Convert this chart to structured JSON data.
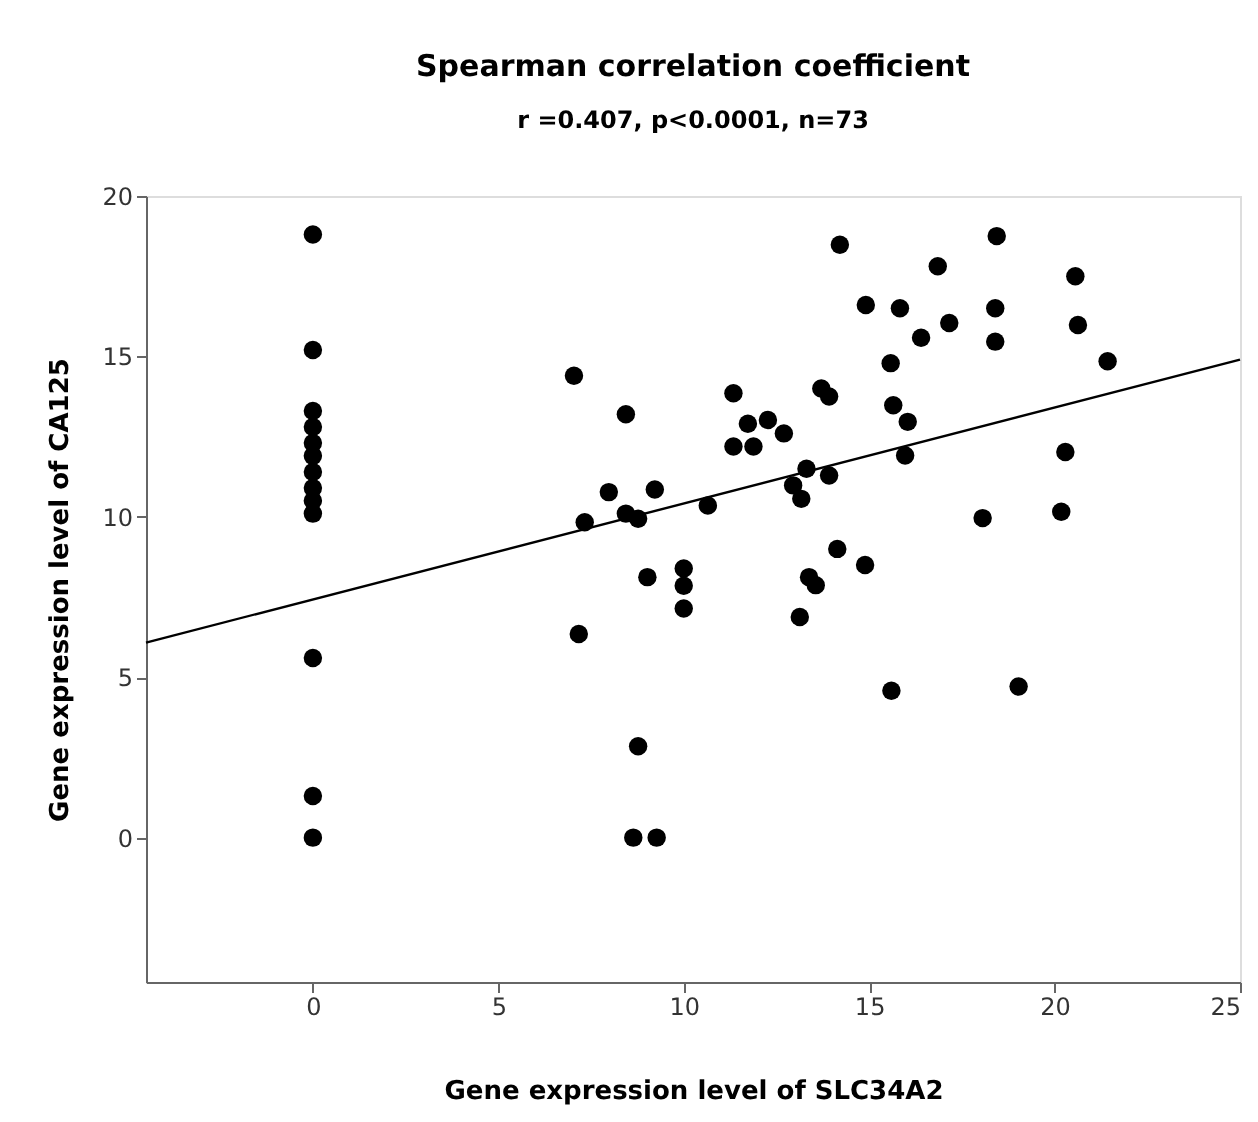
{
  "chart_data": {
    "type": "scatter",
    "title": "Spearman correlation coefficient",
    "subtitle": "r =0.407,  p<0.0001, n=73",
    "xlabel": "Gene expression level of SLC34A2",
    "ylabel": "Gene expression level of CA125",
    "xlim": [
      -4.5,
      25
    ],
    "ylim": [
      -4.5,
      20
    ],
    "xticks": [
      0,
      5,
      10,
      15,
      20,
      25
    ],
    "yticks": [
      0,
      5,
      10,
      15,
      20
    ],
    "grid": false,
    "marker": "circle",
    "series": [
      {
        "color": "#000000",
        "x": [
          0,
          0,
          0,
          0,
          0,
          0,
          0,
          0,
          0,
          0,
          0,
          0,
          0,
          7.04,
          7.17,
          7.33,
          7.98,
          8.44,
          8.44,
          8.77,
          8.77,
          8.64,
          9.02,
          9.22,
          9.27,
          10,
          10,
          10,
          10.65,
          11.34,
          11.34,
          11.88,
          11.73,
          12.27,
          12.7,
          14.21,
          12.95,
          13.17,
          13.31,
          13.92,
          13.71,
          13.92,
          13.13,
          13.38,
          13.56,
          14.14,
          14.89,
          14.91,
          15.83,
          15.58,
          15.65,
          16.04,
          15.97,
          15.6,
          16.4,
          16.85,
          17.16,
          18.44,
          18.4,
          18.4,
          18.06,
          19.03,
          20.29,
          20.18,
          20.56,
          20.63,
          21.43
        ],
        "values": [
          18.8,
          15.2,
          13.3,
          12.8,
          12.3,
          11.9,
          11.4,
          10.9,
          10.5,
          10.1,
          5.6,
          1.3,
          0,
          14.4,
          6.35,
          9.83,
          10.77,
          13.2,
          10.1,
          9.94,
          2.85,
          0,
          8.12,
          10.85,
          0,
          8.39,
          7.85,
          7.14,
          10.35,
          13.85,
          12.19,
          12.19,
          12.9,
          13.02,
          12.6,
          18.48,
          10.98,
          10.56,
          11.5,
          11.29,
          14.0,
          13.75,
          6.88,
          8.12,
          7.87,
          9.0,
          8.5,
          16.6,
          16.5,
          14.79,
          13.48,
          12.96,
          11.91,
          4.58,
          15.58,
          17.81,
          16.04,
          18.75,
          16.5,
          15.46,
          9.96,
          4.71,
          12.02,
          10.16,
          17.5,
          15.98,
          14.85
        ]
      },
      {
        "type": "line",
        "color": "#000000",
        "line_style": "solid",
        "marker": "none",
        "x": [
          -4.5,
          25
        ],
        "values": [
          6.08,
          14.9
        ]
      }
    ]
  }
}
